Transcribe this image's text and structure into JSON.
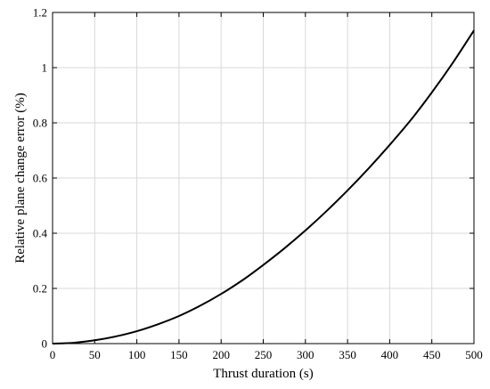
{
  "chart_data": {
    "type": "line",
    "title": "",
    "xlabel": "Thrust duration (s)",
    "ylabel": "Relative plane change error (%)",
    "xlim": [
      0,
      500
    ],
    "ylim": [
      0,
      1.2
    ],
    "xticks": [
      0,
      50,
      100,
      150,
      200,
      250,
      300,
      350,
      400,
      450,
      500
    ],
    "xtick_labels": [
      "0",
      "50",
      "100",
      "150",
      "200",
      "250",
      "300",
      "350",
      "400",
      "450",
      "500"
    ],
    "yticks": [
      0,
      0.2,
      0.4,
      0.6,
      0.8,
      1.0,
      1.2
    ],
    "ytick_labels": [
      "0",
      "0.2",
      "0.4",
      "0.6",
      "0.8",
      "1",
      "1.2"
    ],
    "grid": true,
    "series": [
      {
        "color": "#000000",
        "x": [
          0,
          25,
          50,
          75,
          100,
          125,
          150,
          175,
          200,
          225,
          250,
          275,
          300,
          325,
          350,
          375,
          400,
          425,
          450,
          475,
          500
        ],
        "y": [
          0,
          0.003,
          0.012,
          0.026,
          0.045,
          0.07,
          0.1,
          0.137,
          0.18,
          0.229,
          0.285,
          0.345,
          0.41,
          0.48,
          0.555,
          0.635,
          0.72,
          0.81,
          0.91,
          1.018,
          1.135
        ]
      }
    ]
  }
}
